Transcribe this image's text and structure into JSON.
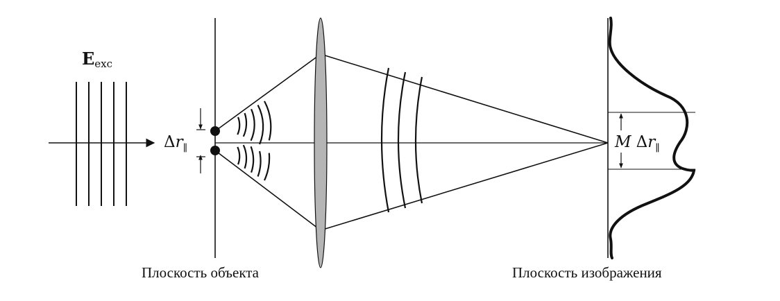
{
  "labels": {
    "field_main": "E",
    "field_sub": "exc",
    "delta_symbol": "Δ",
    "r_symbol": "r",
    "parallel_sub": "∥",
    "magnification_symbol": "M",
    "object_plane_caption": "Плоскость объекта",
    "image_plane_caption": "Плоскость изображения"
  },
  "colors": {
    "lens_fill": "#b5b5b5",
    "line": "#111111"
  }
}
